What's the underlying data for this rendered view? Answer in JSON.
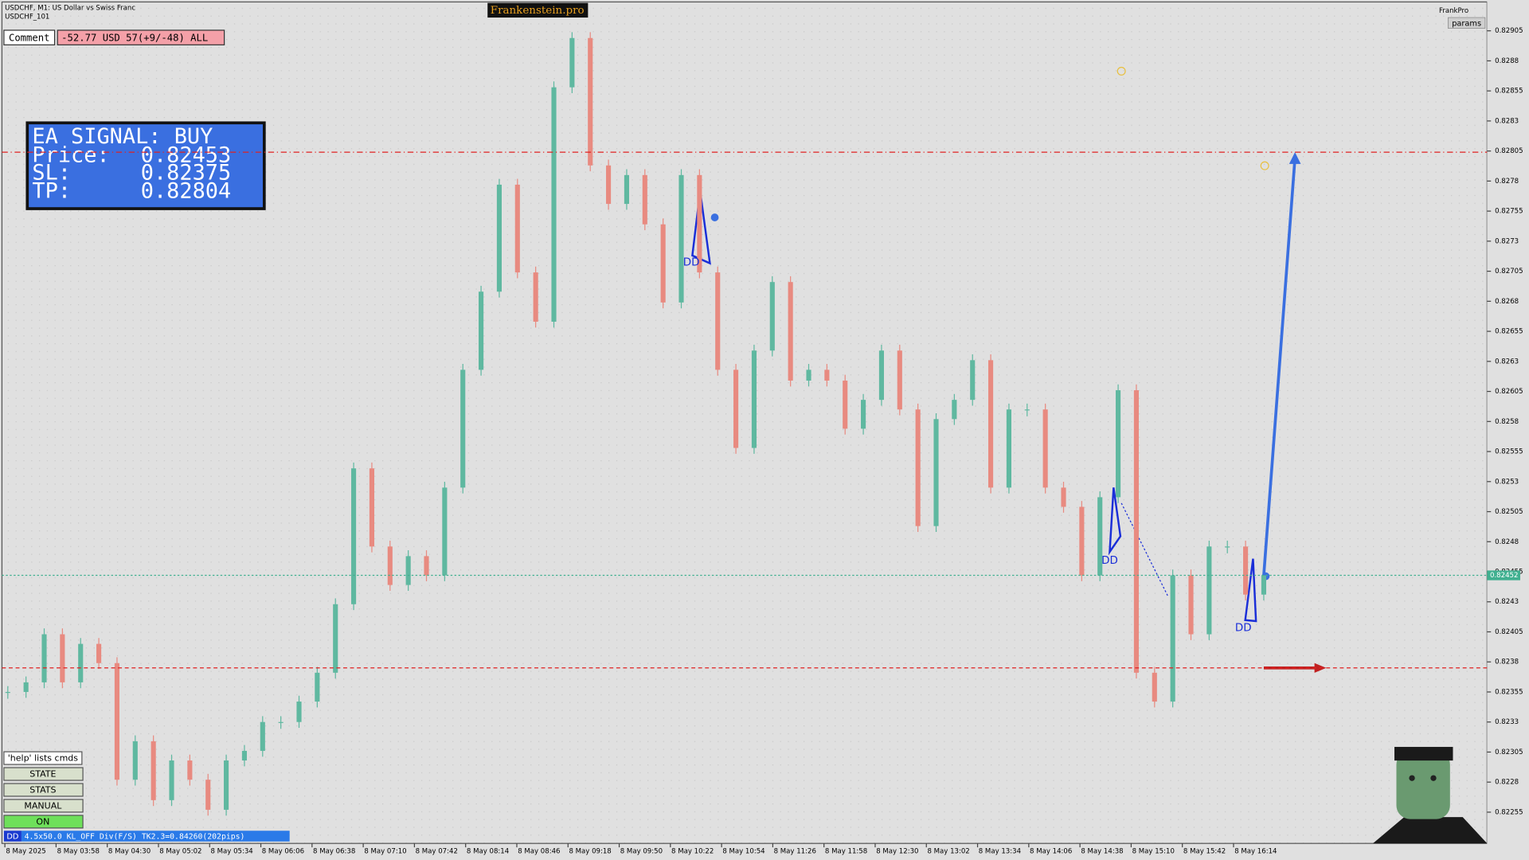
{
  "header": {
    "symbol": "USDCHF, M1:  US Dollar vs Swiss Franc",
    "template": "USDCHF_101",
    "brand": "Frankenstein.pro",
    "user": "FrankPro",
    "params": "params"
  },
  "comment": {
    "label": "Comment",
    "text": "-52.77 USD 57(+9/-48) ALL"
  },
  "signal": {
    "title": "EA SIGNAL: BUY",
    "price_label": "Price:",
    "price": 0.82453,
    "sl_label": "SL:",
    "sl": 0.82375,
    "tp_label": "TP:",
    "tp": 0.82804
  },
  "buttons": [
    "'help' lists cmds",
    "STATE",
    "STATS",
    "MANUAL",
    "ON"
  ],
  "status": {
    "tag": "DD",
    "text": "4.5x50.0 KL_OFF Div(F/S) TK2.3=0.84260(202pips)"
  },
  "pattern_labels": [
    "DD",
    "DD",
    "DD"
  ],
  "chart_data": {
    "type": "candlestick",
    "up_color": "#5fb8a0",
    "down_color": "#e88a80",
    "values": [
      0.82355,
      0.82363,
      0.82403,
      0.82363,
      0.82395,
      0.82379,
      0.82282,
      0.82314,
      0.82265,
      0.82298,
      0.82282,
      0.82257,
      0.82298,
      0.82306,
      0.8233,
      0.8233,
      0.82347,
      0.82371,
      0.82428,
      0.82541,
      0.82476,
      0.82444,
      0.82468,
      0.82452,
      0.82525,
      0.82623,
      0.82688,
      0.82777,
      0.82704,
      0.82663,
      0.82858,
      0.82899,
      0.82793,
      0.82761,
      0.82785,
      0.82744,
      0.82679,
      0.82785,
      0.82704,
      0.82623,
      0.82558,
      0.82639,
      0.82696,
      0.82614,
      0.82623,
      0.82614,
      0.82574,
      0.82598,
      0.82639,
      0.8259,
      0.82493,
      0.82582,
      0.82598,
      0.82631,
      0.82525,
      0.8259,
      0.8259,
      0.82525,
      0.82509,
      0.82452,
      0.82517,
      0.82606,
      0.82371,
      0.82347,
      0.82452,
      0.82403,
      0.82476,
      0.82476,
      0.82436,
      0.82452
    ],
    "x_labels": [
      "8 May 2025",
      "8 May 03:58",
      "8 May 04:30",
      "8 May 05:02",
      "8 May 05:34",
      "8 May 06:06",
      "8 May 06:38",
      "8 May 07:10",
      "8 May 07:42",
      "8 May 08:14",
      "8 May 08:46",
      "8 May 09:18",
      "8 May 09:50",
      "8 May 10:22",
      "8 May 10:54",
      "8 May 11:26",
      "8 May 11:58",
      "8 May 12:30",
      "8 May 13:02",
      "8 May 13:34",
      "8 May 14:06",
      "8 May 14:38",
      "8 May 15:10",
      "8 May 15:42",
      "8 May 16:14"
    ],
    "ylim": [
      0.82229,
      0.82929
    ],
    "yticks": [
      0.82905,
      0.8288,
      0.82855,
      0.8283,
      0.82805,
      0.8278,
      0.82755,
      0.8273,
      0.82705,
      0.8268,
      0.82655,
      0.8263,
      0.82605,
      0.8258,
      0.82555,
      0.8253,
      0.82505,
      0.8248,
      0.82455,
      0.8243,
      0.82405,
      0.8238,
      0.82355,
      0.8233,
      0.82305,
      0.8228,
      0.82255
    ],
    "bid": 0.82452,
    "grid": true
  }
}
